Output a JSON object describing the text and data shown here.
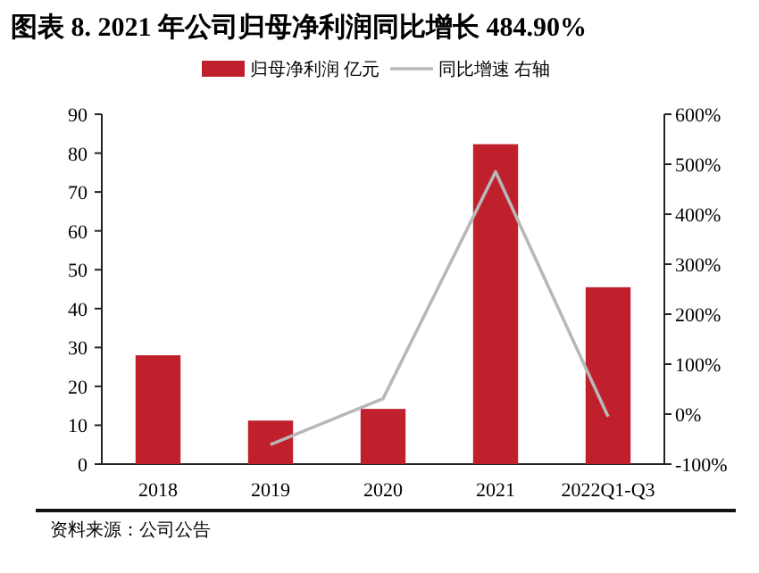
{
  "chart_data": {
    "type": "bar",
    "title": "图表 8.  2021 年公司归母净利润同比增长 484.90%",
    "categories": [
      "2018",
      "2019",
      "2020",
      "2021",
      "2022Q1-Q3"
    ],
    "series": [
      {
        "name": "归母净利润 亿元",
        "color": "#c0202c",
        "values": [
          28,
          11.2,
          14.2,
          82.3,
          45.5
        ]
      },
      {
        "name": "同比增速 右轴",
        "type": "line",
        "axis": "y2",
        "color": "#b8b8b8",
        "values": [
          null,
          -61,
          31,
          484.9,
          -5
        ]
      }
    ],
    "ylim": [
      0,
      90
    ],
    "yticks": [
      0,
      10,
      20,
      30,
      40,
      50,
      60,
      70,
      80,
      90
    ],
    "y2lim": [
      -100,
      600
    ],
    "y2ticks": [
      {
        "value": -100,
        "label": "-100%"
      },
      {
        "value": 0,
        "label": "0%"
      },
      {
        "value": 100,
        "label": "100%"
      },
      {
        "value": 200,
        "label": "200%"
      },
      {
        "value": 300,
        "label": "300%"
      },
      {
        "value": 400,
        "label": "400%"
      },
      {
        "value": 500,
        "label": "500%"
      },
      {
        "value": 600,
        "label": "600%"
      }
    ],
    "legend": "top",
    "grid": false,
    "annotations": [
      "资料来源：公司公告"
    ]
  }
}
